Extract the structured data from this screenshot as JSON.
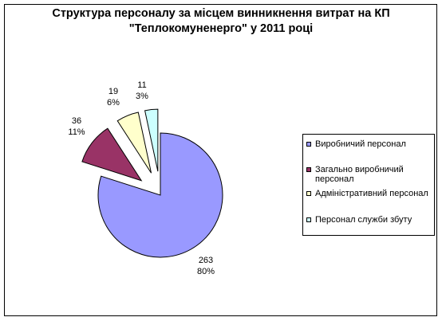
{
  "chart_data": {
    "type": "pie",
    "title_line1": "Структура персоналу за місцем винникнення витрат на КП",
    "title_line2": "\"Теплокомуненерго\" у 2011 році",
    "categories": [
      "Виробничий персонал",
      "Загально виробничий персонал",
      "Адміністративний персонал",
      "Персонал служби збуту"
    ],
    "values": [
      263,
      36,
      19,
      11
    ],
    "percent_labels": [
      "80%",
      "11%",
      "6%",
      "3%"
    ],
    "colors": [
      "#9999ff",
      "#993366",
      "#ffffcc",
      "#ccffff"
    ],
    "exploded": true,
    "legend_position": "right"
  },
  "legend": {
    "items": [
      {
        "label": "Виробничий персонал"
      },
      {
        "label": "Загально виробничий персонал"
      },
      {
        "label": "Адміністративний персонал"
      },
      {
        "label": "Персонал служби збуту"
      }
    ]
  }
}
